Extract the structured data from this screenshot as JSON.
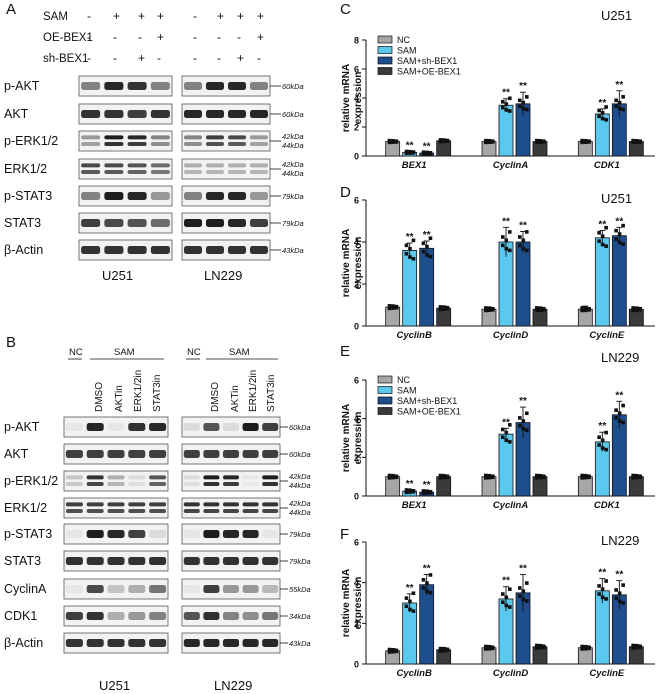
{
  "panel_letters": {
    "a": "A",
    "b": "B",
    "c": "C",
    "d": "D",
    "e": "E",
    "f": "F"
  },
  "blotA": {
    "treat_labels": [
      "SAM",
      "OE-BEX1",
      "sh-BEX1"
    ],
    "signs": [
      [
        "-",
        "+",
        "+",
        "+"
      ],
      [
        "-",
        "-",
        "-",
        "+"
      ],
      [
        "-",
        "-",
        "+",
        "-"
      ]
    ],
    "cell_lines": [
      "U251",
      "LN229"
    ],
    "rows": [
      {
        "label": "p-AKT",
        "size": "60kDa"
      },
      {
        "label": "AKT",
        "size": "60kDa"
      },
      {
        "label": "p-ERK1/2",
        "size": "42kDa",
        "size2": "44kDa"
      },
      {
        "label": "ERK1/2",
        "size": "42kDa",
        "size2": "44kDa"
      },
      {
        "label": "p-STAT3",
        "size": "79kDa"
      },
      {
        "label": "STAT3",
        "size": "79kDa"
      },
      {
        "label": "β-Actin",
        "size": "43kDa"
      }
    ]
  },
  "blotB": {
    "nc": "NC",
    "sam": "SAM",
    "lanes": [
      "DMSO",
      "AKTin",
      "ERK1/2in",
      "STAT3in"
    ],
    "cell_lines": [
      "U251",
      "LN229"
    ],
    "rows": [
      {
        "label": "p-AKT",
        "size": "60kDa"
      },
      {
        "label": "AKT",
        "size": "60kDa"
      },
      {
        "label": "p-ERK1/2",
        "size": "42kDa",
        "size2": "44kDa"
      },
      {
        "label": "ERK1/2",
        "size": "42kDa",
        "size2": "44kDa"
      },
      {
        "label": "p-STAT3",
        "size": "79kDa"
      },
      {
        "label": "STAT3",
        "size": "79kDa"
      },
      {
        "label": "CyclinA",
        "size": "55kDa"
      },
      {
        "label": "CDK1",
        "size": "34kDa"
      },
      {
        "label": "β-Actin",
        "size": "43kDa"
      }
    ]
  },
  "colors": {
    "nc": "#a6a6a6",
    "sam": "#5bc8ee",
    "sh": "#1f4e8c",
    "oe": "#3a3a3a"
  },
  "chart_data": [
    {
      "panel": "C",
      "type": "bar",
      "title": "U251",
      "ylabel": "relative mRNA expression",
      "ylim": [
        0,
        8
      ],
      "yticks": [
        0,
        2,
        4,
        6,
        8
      ],
      "categories": [
        "BEX1",
        "CyclinA",
        "CDK1"
      ],
      "legend": [
        "NC",
        "SAM",
        "SAM+sh-BEX1",
        "SAM+OE-BEX1"
      ],
      "series": [
        {
          "name": "NC",
          "values": [
            1.0,
            1.0,
            1.0
          ],
          "err": [
            0.04,
            0.05,
            0.05
          ]
        },
        {
          "name": "SAM",
          "values": [
            0.25,
            3.5,
            2.9
          ],
          "err": [
            0.05,
            0.45,
            0.35
          ]
        },
        {
          "name": "SAM+sh-BEX1",
          "values": [
            0.2,
            3.6,
            3.6
          ],
          "err": [
            0.05,
            0.8,
            0.9
          ]
        },
        {
          "name": "SAM+OE-BEX1",
          "values": [
            1.05,
            1.0,
            1.0
          ],
          "err": [
            0.05,
            0.05,
            0.05
          ]
        }
      ],
      "stars": [
        [
          "",
          "**",
          "**",
          ""
        ],
        [
          "",
          "**",
          "**",
          ""
        ],
        [
          "",
          "**",
          "**",
          ""
        ]
      ]
    },
    {
      "panel": "D",
      "type": "bar",
      "title": "U251",
      "ylabel": "relative mRNA expression",
      "ylim": [
        0,
        6
      ],
      "yticks": [
        0,
        2,
        4,
        6
      ],
      "categories": [
        "CyclinB",
        "CyclinD",
        "CyclinE"
      ],
      "legend": [],
      "series": [
        {
          "name": "NC",
          "values": [
            0.9,
            0.8,
            0.8
          ],
          "err": [
            0.1,
            0.1,
            0.15
          ]
        },
        {
          "name": "SAM",
          "values": [
            3.6,
            4.0,
            4.2
          ],
          "err": [
            0.35,
            0.7,
            0.35
          ]
        },
        {
          "name": "SAM+sh-BEX1",
          "values": [
            3.7,
            4.0,
            4.3
          ],
          "err": [
            0.35,
            0.5,
            0.4
          ]
        },
        {
          "name": "SAM+OE-BEX1",
          "values": [
            0.85,
            0.8,
            0.8
          ],
          "err": [
            0.1,
            0.1,
            0.1
          ]
        }
      ],
      "stars": [
        [
          "",
          "**",
          "**",
          ""
        ],
        [
          "",
          "**",
          "**",
          ""
        ],
        [
          "",
          "**",
          "**",
          ""
        ]
      ]
    },
    {
      "panel": "E",
      "type": "bar",
      "title": "LN229",
      "ylabel": "relative mRNA expression",
      "ylim": [
        0,
        6
      ],
      "yticks": [
        0,
        2,
        4,
        6
      ],
      "categories": [
        "BEX1",
        "CyclinA",
        "CDK1"
      ],
      "legend": [
        "NC",
        "SAM",
        "SAM+sh-BEX1",
        "SAM+OE-BEX1"
      ],
      "series": [
        {
          "name": "NC",
          "values": [
            1.0,
            1.0,
            1.0
          ],
          "err": [
            0.04,
            0.05,
            0.05
          ]
        },
        {
          "name": "SAM",
          "values": [
            0.25,
            3.2,
            2.8
          ],
          "err": [
            0.05,
            0.3,
            0.5
          ]
        },
        {
          "name": "SAM+sh-BEX1",
          "values": [
            0.2,
            3.8,
            4.2
          ],
          "err": [
            0.05,
            0.8,
            0.7
          ]
        },
        {
          "name": "SAM+OE-BEX1",
          "values": [
            1.0,
            1.0,
            1.0
          ],
          "err": [
            0.05,
            0.05,
            0.05
          ]
        }
      ],
      "stars": [
        [
          "",
          "**",
          "**",
          ""
        ],
        [
          "",
          "**",
          "**",
          ""
        ],
        [
          "",
          "**",
          "**",
          ""
        ]
      ]
    },
    {
      "panel": "F",
      "type": "bar",
      "title": "LN229",
      "ylabel": "relative mRNA expression",
      "ylim": [
        0,
        6
      ],
      "yticks": [
        0,
        2,
        4,
        6
      ],
      "categories": [
        "CyclinB",
        "CyclinD",
        "CyclinE"
      ],
      "legend": [],
      "series": [
        {
          "name": "NC",
          "values": [
            0.65,
            0.8,
            0.8
          ],
          "err": [
            0.1,
            0.1,
            0.1
          ]
        },
        {
          "name": "SAM",
          "values": [
            3.0,
            3.2,
            3.6
          ],
          "err": [
            0.45,
            0.6,
            0.6
          ]
        },
        {
          "name": "SAM+sh-BEX1",
          "values": [
            3.9,
            3.5,
            3.4
          ],
          "err": [
            0.5,
            0.9,
            0.7
          ]
        },
        {
          "name": "SAM+OE-BEX1",
          "values": [
            0.7,
            0.85,
            0.85
          ],
          "err": [
            0.1,
            0.1,
            0.1
          ]
        }
      ],
      "stars": [
        [
          "",
          "**",
          "**",
          ""
        ],
        [
          "",
          "**",
          "**",
          ""
        ],
        [
          "",
          "**",
          "**",
          ""
        ]
      ]
    }
  ]
}
